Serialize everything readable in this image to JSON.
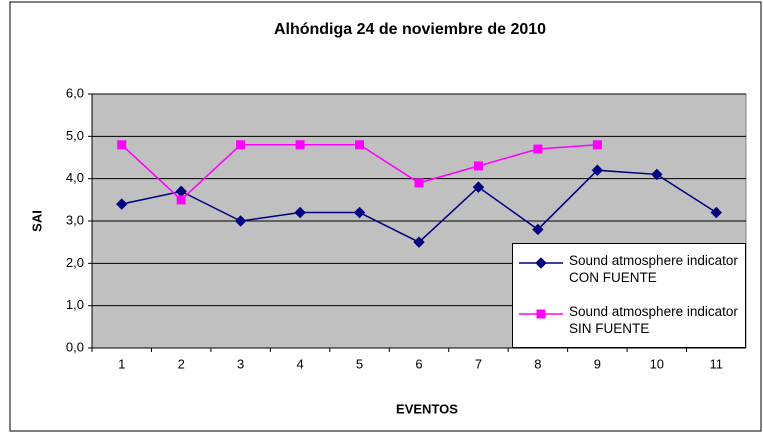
{
  "chart_data": {
    "type": "line",
    "title": "Alhóndiga 24 de noviembre de 2010",
    "x_label": "EVENTOS",
    "y_label": "SAI",
    "categories": [
      1,
      2,
      3,
      4,
      5,
      6,
      7,
      8,
      9,
      10,
      11
    ],
    "series": [
      {
        "name": "Sound atmosphere indicator CON FUENTE",
        "color": "#000080",
        "marker": "diamond",
        "values": [
          3.4,
          3.7,
          3.0,
          3.2,
          3.2,
          2.5,
          3.8,
          2.8,
          4.2,
          4.1,
          3.2
        ]
      },
      {
        "name": "Sound atmosphere indicator SIN FUENTE",
        "color": "#ff00ff",
        "marker": "square",
        "values": [
          4.8,
          3.5,
          4.8,
          4.8,
          4.8,
          3.9,
          4.3,
          4.7,
          4.8,
          null,
          null
        ]
      }
    ],
    "ylim": [
      0,
      6
    ],
    "yticks": [
      {
        "value": 0,
        "label": "0,0"
      },
      {
        "value": 1,
        "label": "1,0"
      },
      {
        "value": 2,
        "label": "2,0"
      },
      {
        "value": 3,
        "label": "3,0"
      },
      {
        "value": 4,
        "label": "4,0"
      },
      {
        "value": 5,
        "label": "5,0"
      },
      {
        "value": 6,
        "label": "6,0"
      }
    ],
    "grid": true,
    "legend": "lower right",
    "plot_background": "#c0c0c0"
  }
}
